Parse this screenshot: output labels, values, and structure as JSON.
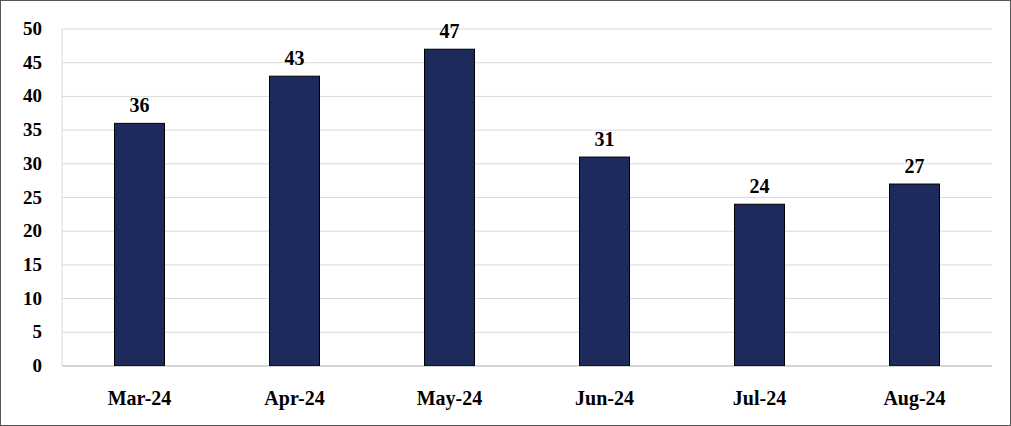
{
  "chart_data": {
    "type": "bar",
    "categories": [
      "Mar-24",
      "Apr-24",
      "May-24",
      "Jun-24",
      "Jul-24",
      "Aug-24"
    ],
    "values": [
      36,
      43,
      47,
      31,
      24,
      27
    ],
    "color": "#1f2a5c",
    "ylim": [
      0,
      50
    ],
    "yticks": [
      0,
      5,
      10,
      15,
      20,
      25,
      30,
      35,
      40,
      45,
      50
    ],
    "grid": true,
    "data_labels": true
  }
}
